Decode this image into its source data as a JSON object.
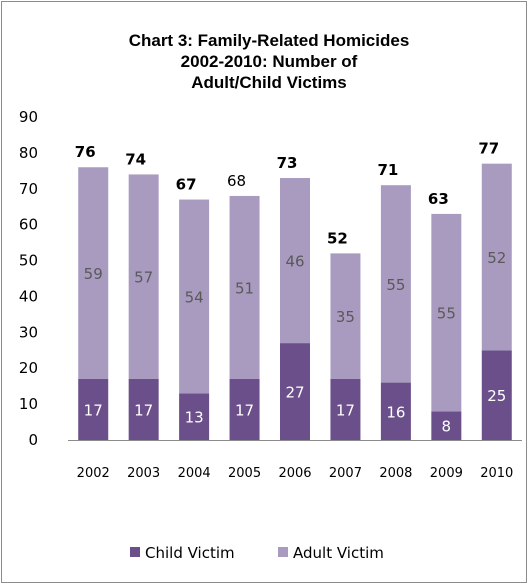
{
  "chart_data": {
    "type": "bar",
    "stacked": true,
    "title": "Chart 3: Family-Related Homicides 2002-2010: Number of Adult/Child Victims",
    "title_lines": [
      "Chart 3: Family-Related Homicides",
      "2002-2010: Number of",
      "Adult/Child Victims"
    ],
    "categories": [
      "2002",
      "2003",
      "2004",
      "2005",
      "2006",
      "2007",
      "2008",
      "2009",
      "2010"
    ],
    "series": [
      {
        "name": "Child Victim",
        "color": "#6b4f8a",
        "values": [
          17,
          17,
          13,
          17,
          27,
          17,
          16,
          8,
          25
        ]
      },
      {
        "name": "Adult Victim",
        "color": "#a99bc0",
        "values": [
          59,
          57,
          54,
          51,
          46,
          35,
          55,
          55,
          52
        ]
      }
    ],
    "totals": [
      76,
      74,
      67,
      68,
      73,
      52,
      71,
      63,
      77
    ],
    "totals_bold": [
      true,
      true,
      true,
      false,
      true,
      true,
      true,
      true,
      true
    ],
    "ylim": [
      0,
      90
    ],
    "yticks": [
      "0",
      "10",
      "20",
      "30",
      "40",
      "50",
      "60",
      "70",
      "80",
      "90"
    ],
    "xlabel": "",
    "ylabel": "",
    "grid": false,
    "legend_position": "bottom"
  }
}
